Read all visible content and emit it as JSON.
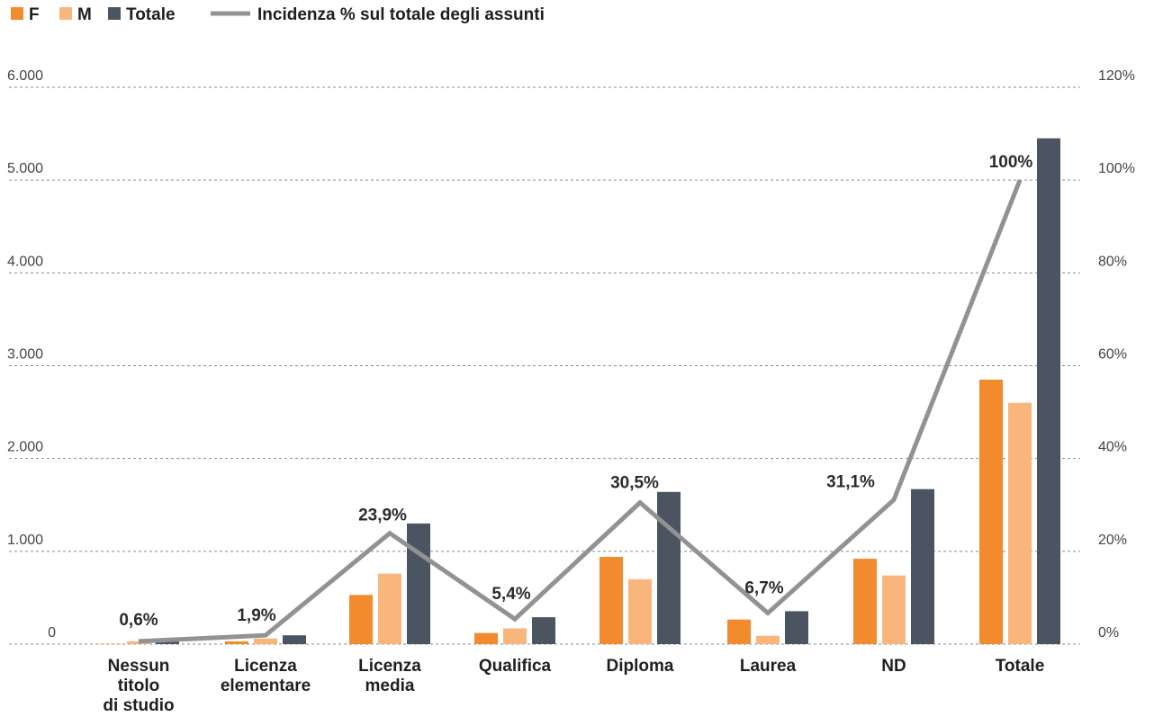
{
  "chart_data": {
    "type": "bar",
    "categories": [
      [
        "Nessun",
        "titolo",
        "di studio"
      ],
      [
        "Licenza",
        "elementare"
      ],
      [
        "Licenza",
        "media"
      ],
      [
        "Qualifica"
      ],
      [
        "Diploma"
      ],
      [
        "Laurea"
      ],
      [
        "ND"
      ],
      [
        "Totale"
      ]
    ],
    "series": [
      {
        "name": "F",
        "type": "bar",
        "color": "#f28a2e",
        "values": [
          3,
          30,
          530,
          120,
          940,
          265,
          920,
          2850
        ]
      },
      {
        "name": "M",
        "type": "bar",
        "color": "#f8b67d",
        "values": [
          30,
          60,
          760,
          170,
          700,
          90,
          740,
          2600
        ]
      },
      {
        "name": "Totale",
        "type": "bar",
        "color": "#4a5561",
        "values": [
          33,
          95,
          1300,
          290,
          1640,
          355,
          1670,
          5450
        ]
      },
      {
        "name": "Incidenza % sul totale degli assunti",
        "type": "line",
        "axis": "right",
        "color": "#929292",
        "values": [
          0.6,
          1.9,
          23.9,
          5.4,
          30.5,
          6.7,
          31.1,
          100
        ]
      }
    ],
    "data_labels": [
      "0,6%",
      "1,9%",
      "23,9%",
      "5,4%",
      "30,5%",
      "6,7%",
      "31,1%",
      "100%"
    ],
    "y_left": {
      "min": 0,
      "max": 6000,
      "ticks": [
        0,
        1000,
        2000,
        3000,
        4000,
        5000,
        6000
      ],
      "tick_labels": [
        "0",
        "1.000",
        "2.000",
        "3.000",
        "4.000",
        "5.000",
        "6.000"
      ]
    },
    "y_right": {
      "min": 0,
      "max": 120,
      "ticks": [
        0,
        20,
        40,
        60,
        80,
        100,
        120
      ],
      "tick_labels": [
        "0%",
        "20%",
        "40%",
        "60%",
        "80%",
        "100%",
        "120%"
      ]
    },
    "grid": "dotted-horizontal",
    "legend_position": "top-left",
    "title": "",
    "xlabel": "",
    "ylabel": ""
  }
}
